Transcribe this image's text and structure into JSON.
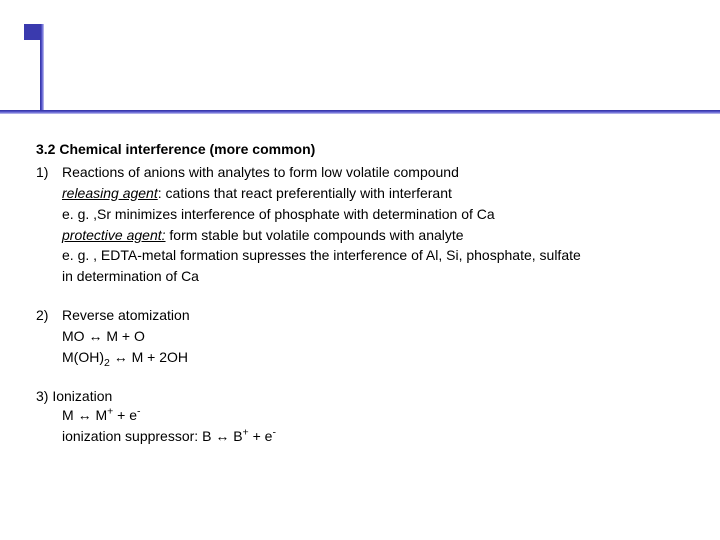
{
  "colors": {
    "rule": "#2e2e9e",
    "text": "#000000",
    "background": "#ffffff"
  },
  "heading": "3.2 Chemical interference (more common)",
  "item1": {
    "num": "1)",
    "line1": "Reactions of anions with analytes to form low volatile compound",
    "releasing_label": "releasing agent",
    "releasing_text": ": cations that react preferentially with interferant",
    "eg1": "e. g. ,Sr minimizes  interference of phosphate with determination of Ca",
    "protective_label": "protective agent:",
    "protective_text": "  form stable but volatile compounds with analyte",
    "eg2a": "e. g. , EDTA-metal formation supresses the interference of Al, Si, phosphate, sulfate",
    "eg2b": "in determination of Ca"
  },
  "item2": {
    "num": "2)",
    "title": "Reverse atomization",
    "eq1_lhs": "MO ",
    "eq1_rhs": " M + O",
    "eq2_lhs": "M(OH)",
    "eq2_sub": "2",
    "eq2_mid": " ",
    "eq2_rhs": " M + 2OH"
  },
  "item3": {
    "title": "3) Ionization",
    "eq1_lhs": "M ",
    "eq1_mid": " M",
    "eq1_sup": "+",
    "eq1_tail": " + e",
    "eq1_sup2": "-",
    "supp_lhs": "ionization suppressor: B ",
    "supp_mid": " B",
    "supp_sup": "+",
    "supp_tail": " + e",
    "supp_sup2": "-"
  },
  "arrow": "↔"
}
